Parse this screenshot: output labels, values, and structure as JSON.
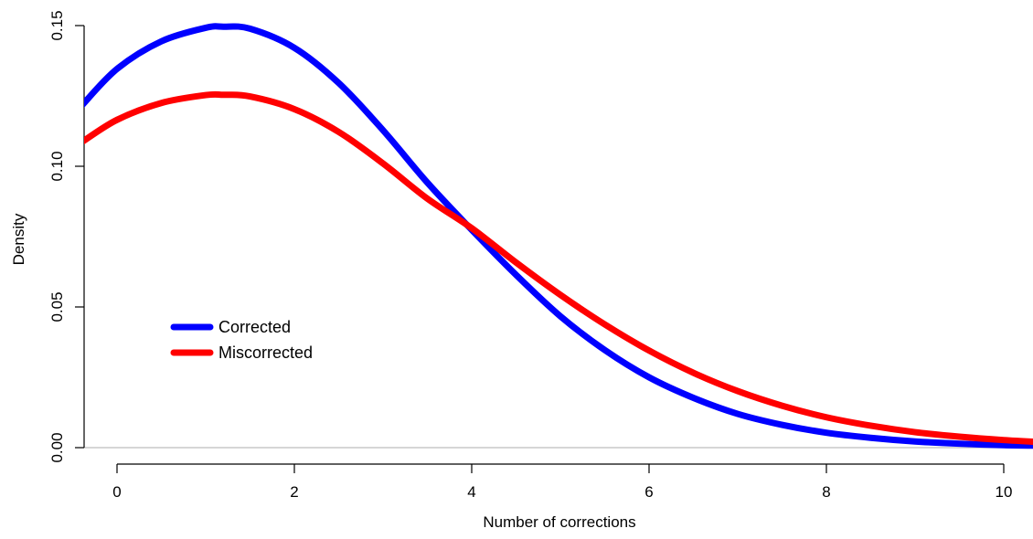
{
  "chart_data": {
    "type": "line",
    "title": "",
    "xlabel": "Number of corrections",
    "ylabel": "Density",
    "xlim": [
      -0.4,
      10.4
    ],
    "ylim": [
      0,
      0.15
    ],
    "x_ticks": [
      0,
      2,
      4,
      6,
      8,
      10
    ],
    "x_tick_labels": [
      "0",
      "2",
      "4",
      "6",
      "8",
      "10"
    ],
    "y_ticks": [
      0,
      0.05,
      0.1,
      0.15
    ],
    "y_tick_labels": [
      "0.00",
      "0.05",
      "0.10",
      "0.15"
    ],
    "grid": false,
    "legend_position": "center-left",
    "series": [
      {
        "name": "Corrected",
        "color": "#0000ff",
        "x": [
          -0.4,
          0,
          0.5,
          1,
          1.2,
          1.5,
          2,
          2.5,
          3,
          3.5,
          4,
          4.5,
          5,
          5.5,
          6,
          6.5,
          7,
          7.5,
          8,
          8.5,
          9,
          9.5,
          10,
          10.4
        ],
        "y": [
          0.1215,
          0.1346,
          0.1444,
          0.1492,
          0.1496,
          0.1489,
          0.1421,
          0.1296,
          0.1128,
          0.0942,
          0.0774,
          0.0614,
          0.0467,
          0.0347,
          0.025,
          0.0177,
          0.012,
          0.0081,
          0.0053,
          0.0035,
          0.0022,
          0.0014,
          0.0009,
          0.0007
        ]
      },
      {
        "name": "Miscorrected",
        "color": "#ff0000",
        "x": [
          -0.4,
          0,
          0.5,
          1,
          1.2,
          1.5,
          2,
          2.5,
          3,
          3.5,
          4,
          4.5,
          5,
          5.5,
          6,
          6.5,
          7,
          7.5,
          8,
          8.5,
          9,
          9.5,
          10,
          10.4
        ],
        "y": [
          0.1085,
          0.1165,
          0.1225,
          0.1253,
          0.1254,
          0.1248,
          0.1203,
          0.1122,
          0.101,
          0.0885,
          0.078,
          0.0658,
          0.0543,
          0.0438,
          0.0345,
          0.0266,
          0.0201,
          0.0149,
          0.0108,
          0.0078,
          0.0055,
          0.0039,
          0.0027,
          0.002
        ]
      }
    ]
  }
}
